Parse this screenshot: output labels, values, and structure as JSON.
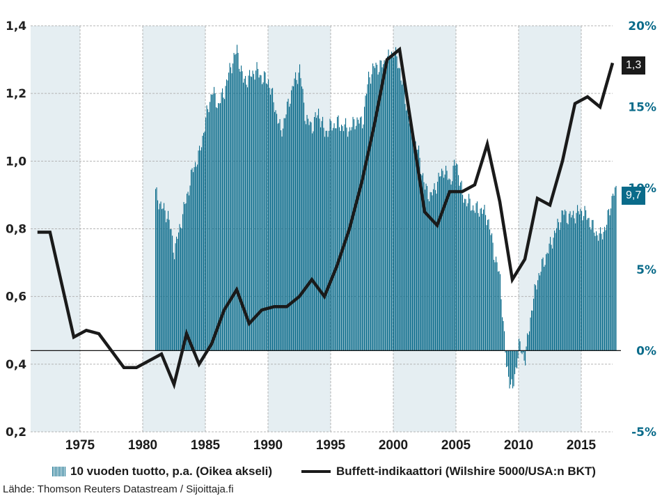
{
  "chart_data": {
    "type": "bar+line",
    "title": "",
    "xlabel": "",
    "x_ticks": [
      "1975",
      "1980",
      "1985",
      "1990",
      "1995",
      "2000",
      "2005",
      "2010",
      "2015"
    ],
    "xlim": [
      1971,
      2018.2
    ],
    "left_axis": {
      "ticks": [
        "1,4",
        "1,2",
        "1,0",
        "0,8",
        "0,6",
        "0,4",
        "0,2"
      ],
      "tick_values": [
        1.4,
        1.2,
        1.0,
        0.8,
        0.6,
        0.4,
        0.2
      ],
      "ylim": [
        0.2,
        1.4
      ]
    },
    "right_axis": {
      "ticks": [
        "20%",
        "15%",
        "10%",
        "5%",
        "0%",
        "-5%"
      ],
      "tick_values": [
        20,
        15,
        10,
        5,
        0,
        -5
      ],
      "ylim": [
        -5,
        20
      ],
      "color": "#0a6b8a"
    },
    "shaded_bands": [
      [
        1971,
        1975
      ],
      [
        1980,
        1985
      ],
      [
        1990,
        1995
      ],
      [
        2000,
        2005
      ],
      [
        2010,
        2015
      ]
    ],
    "grid": true,
    "series": [
      {
        "name": "10 vuoden tuotto, p.a. (Oikea akseli)",
        "type": "bar",
        "axis": "right",
        "color": "#0a6b8a",
        "x": [
          1981.0,
          1981.5,
          1982.0,
          1982.5,
          1983.0,
          1983.5,
          1984.0,
          1984.5,
          1985.0,
          1985.5,
          1986.0,
          1986.5,
          1987.0,
          1987.5,
          1988.0,
          1988.5,
          1989.0,
          1989.5,
          1990.0,
          1990.5,
          1991.0,
          1991.5,
          1992.0,
          1992.5,
          1993.0,
          1993.5,
          1994.0,
          1994.5,
          1995.0,
          1995.5,
          1996.0,
          1996.5,
          1997.0,
          1997.5,
          1998.0,
          1998.5,
          1999.0,
          1999.5,
          2000.0,
          2000.5,
          2001.0,
          2001.5,
          2002.0,
          2002.5,
          2003.0,
          2003.5,
          2004.0,
          2004.5,
          2005.0,
          2005.5,
          2006.0,
          2006.5,
          2007.0,
          2007.5,
          2008.0,
          2008.5,
          2009.0,
          2009.5,
          2010.0,
          2010.5,
          2011.0,
          2011.5,
          2012.0,
          2012.5,
          2013.0,
          2013.5,
          2014.0,
          2014.5,
          2015.0,
          2015.5,
          2016.0,
          2016.5,
          2017.0,
          2017.5
        ],
        "values": [
          9.7,
          8.8,
          8.3,
          6.1,
          7.8,
          9.5,
          11.2,
          12.1,
          14.2,
          16.0,
          15.1,
          16.0,
          17.5,
          18.5,
          16.6,
          16.8,
          17.3,
          16.8,
          16.6,
          15.1,
          13.4,
          14.9,
          16.4,
          17.3,
          14.2,
          13.8,
          14.7,
          13.4,
          13.8,
          14.0,
          13.8,
          13.6,
          14.2,
          14.0,
          16.8,
          17.5,
          17.5,
          17.9,
          18.5,
          17.3,
          15.1,
          13.4,
          12.1,
          10.0,
          9.5,
          10.4,
          11.2,
          10.4,
          11.7,
          9.5,
          9.1,
          8.7,
          8.7,
          8.2,
          6.1,
          4.4,
          -1.0,
          -2.5,
          0.3,
          -0.5,
          2.5,
          4.5,
          5.5,
          6.5,
          7.5,
          8.5,
          8.2,
          8.4,
          8.6,
          8.2,
          7.4,
          7.0,
          7.8,
          9.7
        ],
        "last_value_label": "9,7"
      },
      {
        "name": "Buffett-indikaattori (Wilshire 5000/USA:n BKT)",
        "type": "line",
        "axis": "left",
        "color": "#1a1a1a",
        "x": [
          1971.6,
          1972.6,
          1974.5,
          1975.5,
          1976.5,
          1978.5,
          1979.5,
          1980.5,
          1981.5,
          1982.5,
          1983.5,
          1984.5,
          1985.5,
          1986.5,
          1987.5,
          1988.5,
          1989.5,
          1990.5,
          1991.5,
          1992.5,
          1993.5,
          1994.5,
          1995.5,
          1996.5,
          1997.5,
          1998.5,
          1999.5,
          2000.5,
          2001.5,
          2002.5,
          2003.5,
          2004.5,
          2005.5,
          2006.5,
          2007.5,
          2008.5,
          2009.5,
          2010.5,
          2011.5,
          2012.5,
          2013.5,
          2014.5,
          2015.5,
          2016.5,
          2017.5
        ],
        "values": [
          0.79,
          0.79,
          0.48,
          0.5,
          0.49,
          0.39,
          0.39,
          0.41,
          0.43,
          0.34,
          0.49,
          0.4,
          0.46,
          0.56,
          0.62,
          0.52,
          0.56,
          0.57,
          0.57,
          0.6,
          0.65,
          0.6,
          0.69,
          0.8,
          0.94,
          1.11,
          1.3,
          1.33,
          1.09,
          0.85,
          0.81,
          0.91,
          0.91,
          0.93,
          1.05,
          0.88,
          0.65,
          0.71,
          0.89,
          0.87,
          1.0,
          1.17,
          1.19,
          1.16,
          1.29
        ],
        "last_value_label": "1,3"
      }
    ],
    "legend": [
      "10 vuoden tuotto, p.a. (Oikea akseli)",
      "Buffett-indikaattori (Wilshire 5000/USA:n BKT)"
    ],
    "legend_position": "bottom",
    "source": "Lähde: Thomson Reuters Datastream / Sijoittaja.fi"
  },
  "colors": {
    "bar": "#0a6b8a",
    "line": "#1a1a1a",
    "band": "#e5eef2",
    "grid": "#b4b4b4"
  }
}
